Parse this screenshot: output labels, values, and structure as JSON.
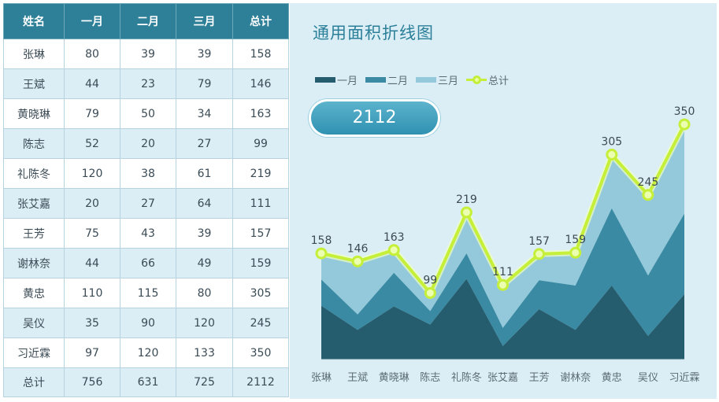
{
  "table": {
    "headers": [
      "姓名",
      "一月",
      "二月",
      "三月",
      "总计"
    ],
    "rows": [
      [
        "张琳",
        "80",
        "39",
        "39",
        "158"
      ],
      [
        "王斌",
        "44",
        "23",
        "79",
        "146"
      ],
      [
        "黄晓琳",
        "79",
        "50",
        "34",
        "163"
      ],
      [
        "陈志",
        "52",
        "20",
        "27",
        "99"
      ],
      [
        "礼陈冬",
        "120",
        "38",
        "61",
        "219"
      ],
      [
        "张艾嘉",
        "20",
        "27",
        "64",
        "111"
      ],
      [
        "王芳",
        "75",
        "43",
        "39",
        "157"
      ],
      [
        "谢林奈",
        "44",
        "66",
        "49",
        "159"
      ],
      [
        "黄忠",
        "110",
        "115",
        "80",
        "305"
      ],
      [
        "吴仪",
        "35",
        "90",
        "120",
        "245"
      ],
      [
        "习近霖",
        "97",
        "120",
        "133",
        "350"
      ]
    ],
    "footer": [
      "总计",
      "756",
      "631",
      "725",
      "2112"
    ]
  },
  "total_badge": "2112",
  "chart_data": {
    "type": "area",
    "title": "通用面积折线图",
    "categories": [
      "张琳",
      "王斌",
      "黄晓琳",
      "陈志",
      "礼陈冬",
      "张艾嘉",
      "王芳",
      "谢林奈",
      "黄忠",
      "吴仪",
      "习近霖"
    ],
    "series": [
      {
        "name": "一月",
        "type": "area-stacked",
        "color": "#265d6e",
        "values": [
          80,
          44,
          79,
          52,
          120,
          20,
          75,
          44,
          110,
          35,
          97
        ]
      },
      {
        "name": "二月",
        "type": "area-stacked",
        "color": "#3a8aa3",
        "values": [
          39,
          23,
          50,
          20,
          38,
          27,
          43,
          66,
          115,
          90,
          120
        ]
      },
      {
        "name": "三月",
        "type": "area-stacked",
        "color": "#93c9da",
        "values": [
          39,
          79,
          34,
          27,
          61,
          64,
          39,
          49,
          80,
          120,
          133
        ]
      },
      {
        "name": "总计",
        "type": "line-markers",
        "color": "#c6ef3a",
        "values": [
          158,
          146,
          163,
          99,
          219,
          111,
          157,
          159,
          305,
          245,
          350
        ]
      }
    ],
    "data_labels": [
      "158",
      "146",
      "163",
      "99",
      "219",
      "111",
      "157",
      "159",
      "305",
      "245",
      "350"
    ],
    "xlabel": "",
    "ylabel": "",
    "ylim": [
      0,
      350
    ],
    "grid": false,
    "legend": "top-left"
  }
}
